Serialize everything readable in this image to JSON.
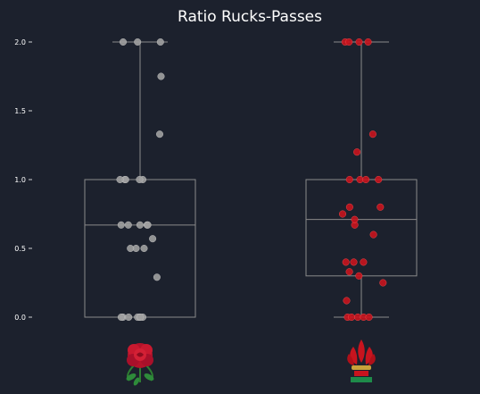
{
  "chart_data": {
    "type": "box",
    "title": "Ratio Rucks-Passes",
    "xlabel": "",
    "ylabel": "",
    "ylim": [
      -0.1,
      2.1
    ],
    "yticks": [
      0.0,
      0.5,
      1.0,
      1.5,
      2.0
    ],
    "ytick_labels": [
      "0.0",
      "0.5",
      "1.0",
      "1.5",
      "2.0"
    ],
    "grid": false,
    "legend": "none",
    "categories": [
      "England",
      "Wales"
    ],
    "category_icons": [
      "rose-emblem-icon",
      "feathers-emblem-icon"
    ],
    "series": [
      {
        "color": "#a0a0a0",
        "box": {
          "whisker_low": 0.0,
          "q1": 0.0,
          "median": 0.67,
          "q3": 1.0,
          "whisker_high": 2.0
        },
        "points": [
          0.0,
          0.0,
          0.0,
          0.0,
          0.0,
          0.0,
          0.0,
          0.29,
          0.5,
          0.5,
          0.5,
          0.57,
          0.67,
          0.67,
          0.67,
          0.67,
          0.67,
          1.0,
          1.0,
          1.0,
          1.0,
          1.0,
          1.33,
          1.75,
          2.0,
          2.0,
          2.0
        ]
      },
      {
        "color": "#c8141e",
        "box": {
          "whisker_low": 0.0,
          "q1": 0.3,
          "median": 0.71,
          "q3": 1.0,
          "whisker_high": 2.0
        },
        "points": [
          0.0,
          0.0,
          0.0,
          0.0,
          0.0,
          0.12,
          0.25,
          0.3,
          0.33,
          0.4,
          0.4,
          0.4,
          0.6,
          0.67,
          0.71,
          0.75,
          0.8,
          0.8,
          1.0,
          1.0,
          1.0,
          1.0,
          1.2,
          1.33,
          2.0,
          2.0,
          2.0,
          2.0
        ]
      }
    ]
  }
}
